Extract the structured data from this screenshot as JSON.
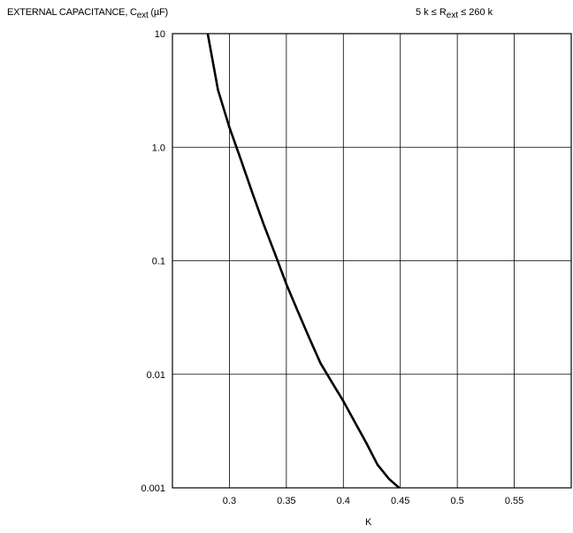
{
  "chart_data": {
    "type": "line",
    "ylabel": {
      "main": "EXTERNAL CAPACITANCE, C",
      "sub": "ext",
      "unit": " (µF)"
    },
    "condition": {
      "pre": "5 k ≤ R",
      "sub": "ext",
      "post": " ≤ 260 k"
    },
    "xlabel": "K",
    "y_scale": "log",
    "ylim": [
      0.001,
      10
    ],
    "xlim": [
      0.25,
      0.6
    ],
    "grid": true,
    "xticks": [
      0.3,
      0.35,
      0.4,
      0.45,
      0.5,
      0.55
    ],
    "xtick_labels": [
      "0.3",
      "0.35",
      "0.4",
      "0.45",
      "0.5",
      "0.55"
    ],
    "yticks": [
      0.001,
      0.01,
      0.1,
      1,
      10
    ],
    "ytick_labels": [
      "0.001",
      "0.01",
      "0.1",
      "1.0",
      "10"
    ],
    "series": [
      {
        "x": [
          0.281,
          0.29,
          0.3,
          0.31,
          0.32,
          0.33,
          0.34,
          0.35,
          0.36,
          0.37,
          0.38,
          0.39,
          0.4,
          0.41,
          0.42,
          0.43,
          0.44,
          0.449
        ],
        "y": [
          10,
          3.2,
          1.5,
          0.78,
          0.4,
          0.21,
          0.115,
          0.062,
          0.036,
          0.021,
          0.0125,
          0.0085,
          0.0058,
          0.0038,
          0.0025,
          0.0016,
          0.0012,
          0.001
        ]
      }
    ]
  },
  "colors": {
    "line": "#000000",
    "grid": "#000000"
  }
}
